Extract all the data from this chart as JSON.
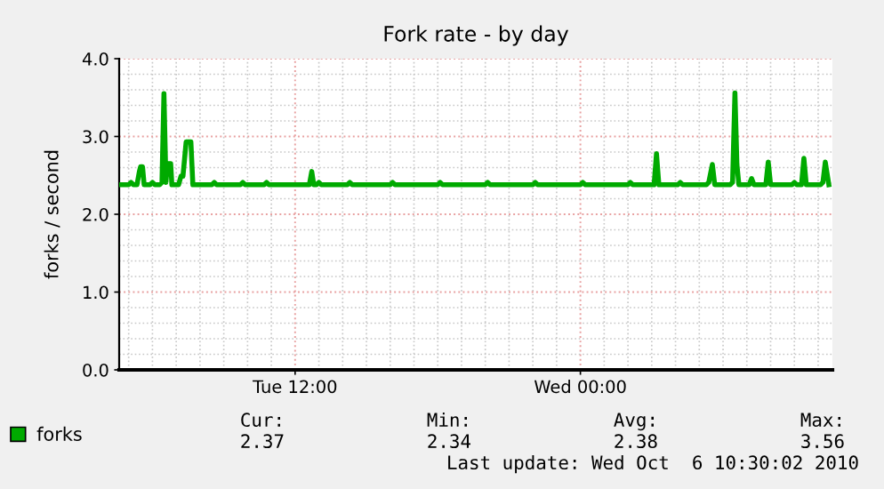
{
  "chart_data": {
    "type": "line",
    "title": "Fork rate - by day",
    "ylabel": "forks / second",
    "x": [
      "2010-10-05T04:36",
      "2010-10-05T05:00",
      "2010-10-05T05:06",
      "2010-10-05T05:12",
      "2010-10-05T05:21",
      "2010-10-05T05:27",
      "2010-10-05T05:30",
      "2010-10-05T05:35",
      "2010-10-05T05:39",
      "2010-10-05T05:54",
      "2010-10-05T06:00",
      "2010-10-05T06:06",
      "2010-10-05T06:18",
      "2010-10-05T06:24",
      "2010-10-05T06:29",
      "2010-10-05T06:34",
      "2010-10-05T06:38",
      "2010-10-05T06:46",
      "2010-10-05T06:49",
      "2010-10-05T07:06",
      "2010-10-05T07:12",
      "2010-10-05T07:17",
      "2010-10-05T07:25",
      "2010-10-05T07:30",
      "2010-10-05T07:37",
      "2010-10-05T07:42",
      "2010-10-05T08:30",
      "2010-10-05T08:36",
      "2010-10-05T08:42",
      "2010-10-05T09:42",
      "2010-10-05T09:48",
      "2010-10-05T09:54",
      "2010-10-05T10:42",
      "2010-10-05T10:48",
      "2010-10-05T10:54",
      "2010-10-05T12:36",
      "2010-10-05T12:42",
      "2010-10-05T12:47",
      "2010-10-05T12:54",
      "2010-10-05T13:00",
      "2010-10-05T13:06",
      "2010-10-05T14:12",
      "2010-10-05T14:18",
      "2010-10-05T14:24",
      "2010-10-05T16:00",
      "2010-10-05T16:06",
      "2010-10-05T16:12",
      "2010-10-05T18:00",
      "2010-10-05T18:06",
      "2010-10-05T18:12",
      "2010-10-05T20:00",
      "2010-10-05T20:06",
      "2010-10-05T20:12",
      "2010-10-05T22:00",
      "2010-10-05T22:06",
      "2010-10-05T22:12",
      "2010-10-06T00:00",
      "2010-10-06T00:06",
      "2010-10-06T00:12",
      "2010-10-06T02:00",
      "2010-10-06T02:06",
      "2010-10-06T02:12",
      "2010-10-06T03:06",
      "2010-10-06T03:12",
      "2010-10-06T03:18",
      "2010-10-06T04:06",
      "2010-10-06T04:12",
      "2010-10-06T04:18",
      "2010-10-06T05:18",
      "2010-10-06T05:24",
      "2010-10-06T05:33",
      "2010-10-06T05:39",
      "2010-10-06T05:48",
      "2010-10-06T06:18",
      "2010-10-06T06:24",
      "2010-10-06T06:30",
      "2010-10-06T06:35",
      "2010-10-06T06:40",
      "2010-10-06T06:45",
      "2010-10-06T07:06",
      "2010-10-06T07:12",
      "2010-10-06T07:18",
      "2010-10-06T07:48",
      "2010-10-06T07:54",
      "2010-10-06T08:00",
      "2010-10-06T08:54",
      "2010-10-06T09:00",
      "2010-10-06T09:06",
      "2010-10-06T09:18",
      "2010-10-06T09:24",
      "2010-10-06T09:30",
      "2010-10-06T10:06",
      "2010-10-06T10:12",
      "2010-10-06T10:18",
      "2010-10-06T10:27"
    ],
    "series": [
      {
        "name": "forks",
        "color": "#00aa00",
        "values": [
          2.38,
          2.38,
          2.41,
          2.38,
          2.38,
          2.55,
          2.61,
          2.61,
          2.38,
          2.38,
          2.41,
          2.38,
          2.38,
          2.41,
          3.55,
          2.41,
          2.65,
          2.65,
          2.38,
          2.38,
          2.49,
          2.49,
          2.93,
          2.93,
          2.93,
          2.38,
          2.38,
          2.41,
          2.38,
          2.38,
          2.41,
          2.38,
          2.38,
          2.41,
          2.38,
          2.38,
          2.55,
          2.38,
          2.38,
          2.41,
          2.38,
          2.38,
          2.41,
          2.38,
          2.38,
          2.41,
          2.38,
          2.38,
          2.41,
          2.38,
          2.38,
          2.41,
          2.38,
          2.38,
          2.41,
          2.38,
          2.38,
          2.41,
          2.38,
          2.38,
          2.41,
          2.38,
          2.38,
          2.78,
          2.38,
          2.38,
          2.41,
          2.38,
          2.38,
          2.41,
          2.64,
          2.38,
          2.38,
          2.38,
          2.41,
          3.56,
          2.64,
          2.38,
          2.38,
          2.38,
          2.46,
          2.38,
          2.38,
          2.67,
          2.38,
          2.38,
          2.41,
          2.38,
          2.38,
          2.72,
          2.38,
          2.38,
          2.41,
          2.67,
          2.38
        ]
      }
    ],
    "xlim": [
      "2010-10-05T04:36",
      "2010-10-06T10:36"
    ],
    "xticks": [
      {
        "value": "2010-10-05T12:00",
        "label": "Tue 12:00"
      },
      {
        "value": "2010-10-06T00:00",
        "label": "Wed 00:00"
      }
    ],
    "ylim": [
      0,
      4
    ],
    "yticks": [
      {
        "value": 0,
        "label": "0.0"
      },
      {
        "value": 1,
        "label": "1.0"
      },
      {
        "value": 2,
        "label": "2.0"
      },
      {
        "value": 3,
        "label": "3.0"
      },
      {
        "value": 4,
        "label": "4.0"
      }
    ],
    "grid": true,
    "legend": "bottom",
    "annotations": [
      "Cur:",
      "2.37",
      "Min:",
      "2.34",
      "Avg:",
      "2.38",
      "Max:",
      "3.56",
      "Last update: Wed Oct  6 10:30:02 2010"
    ]
  }
}
